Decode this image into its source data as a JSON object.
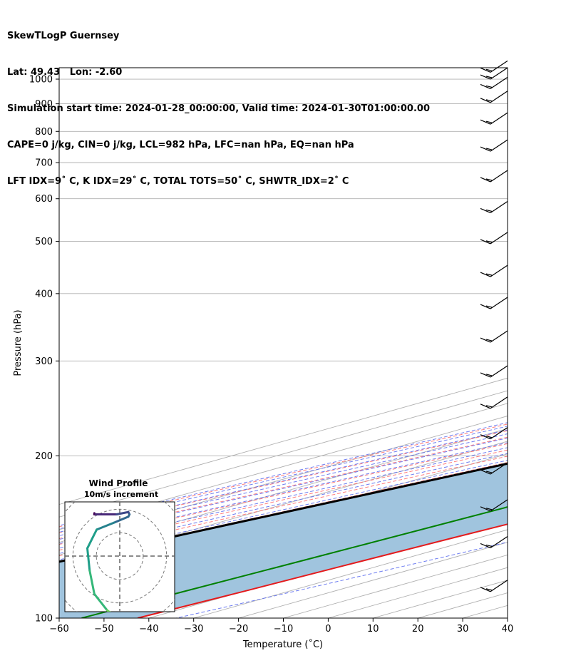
{
  "header": {
    "line1": "SkewTLogP Guernsey",
    "line2": "Lat: 49.43   Lon: -2.60",
    "line3": "Simulation start time: 2024-01-28_00:00:00, Valid time: 2024-01-30T01:00:00.00",
    "line4": "CAPE=0 j/kg, CIN=0 j/kg, LCL=982 hPa, LFC=nan hPa, EQ=nan hPa",
    "line5": "LFT IDX=9˚ C, K IDX=29˚ C, TOTAL TOTS=50˚ C, SHWTR_IDX=2˚ C"
  },
  "colors": {
    "temperature": "#e41a1c",
    "dewpoint": "#008000",
    "parcel": "#000000",
    "fill": "#a0c4de",
    "dry_adiabat": "#ff6666",
    "moist_adiabat": "#5566ee",
    "mixing_ratio": "#9955cc",
    "isotherm": "#b0b0b0"
  },
  "chart_data": [
    {
      "type": "line",
      "subtype": "skew-T log-P",
      "xlabel": "Temperature (˚C)",
      "ylabel": "Pressure (hPa)",
      "xlim": [
        -60,
        40
      ],
      "ylim": [
        1050,
        100
      ],
      "x_ticks": [
        "−60",
        "−50",
        "−40",
        "−30",
        "−20",
        "−10",
        "0",
        "10",
        "20",
        "30",
        "40"
      ],
      "x_tick_values": [
        -60,
        -50,
        -40,
        -30,
        -20,
        -10,
        0,
        10,
        20,
        30,
        40
      ],
      "y_ticks": [
        "100",
        "200",
        "300",
        "400",
        "500",
        "600",
        "700",
        "800",
        "900",
        "1000"
      ],
      "y_tick_values": [
        100,
        200,
        300,
        400,
        500,
        600,
        700,
        800,
        900,
        1000
      ],
      "grid": true,
      "series": [
        {
          "name": "Temperature",
          "pressure": [
            1010,
            1000,
            980,
            950,
            925,
            900,
            850,
            800,
            750,
            700,
            650,
            600,
            550,
            500,
            450,
            400,
            370,
            340,
            320,
            300,
            280,
            260,
            245,
            235,
            220,
            200,
            185,
            170,
            155,
            140,
            125,
            112,
            100
          ],
          "values": [
            10.5,
            11.5,
            13.5,
            13.0,
            12.5,
            12.0,
            10.5,
            8.0,
            5.8,
            3.8,
            2.5,
            1.0,
            -1.0,
            -3.5,
            -6.8,
            -11.0,
            -14.5,
            -17.5,
            -20.0,
            -22.5,
            -25.0,
            -28.0,
            -30.5,
            -30.0,
            -32.0,
            -31.5,
            -33.5,
            -32.5,
            -33.5,
            -35.8,
            -38.0,
            -40.0,
            -42.5
          ]
        },
        {
          "name": "Dewpoint",
          "pressure": [
            1010,
            1000,
            980,
            950,
            925,
            900,
            850,
            800,
            750,
            700,
            650,
            600,
            550,
            500,
            450,
            400,
            370,
            340,
            320,
            300,
            280,
            260,
            245,
            225,
            200,
            190,
            175,
            160,
            130,
            100
          ],
          "values": [
            9.5,
            10.5,
            11.5,
            11.8,
            11.0,
            10.0,
            7.5,
            4.0,
            1.5,
            0.5,
            -1.0,
            -3.0,
            -5.5,
            -9.0,
            -14.0,
            -22.0,
            -28.0,
            -27.0,
            -32.0,
            -33.5,
            -36.0,
            -38.0,
            -38.0,
            -38.0,
            -42.0,
            -44.0,
            -48.0,
            -48.0,
            -51.0,
            -55.0
          ]
        },
        {
          "name": "Parcel",
          "pressure": [
            1010,
            1000,
            982,
            950,
            900,
            850,
            800,
            750,
            700,
            650,
            600,
            550,
            500,
            450,
            400,
            350,
            300,
            250,
            200,
            150,
            125,
            100
          ],
          "values": [
            10.2,
            9.5,
            8.8,
            7.0,
            4.5,
            1.8,
            -1.5,
            -4.8,
            -8.5,
            -12.5,
            -17.0,
            -22.0,
            -27.5,
            -33.5,
            -40.8,
            -48.5,
            -57.5,
            -68.0,
            -80.5,
            -96.0,
            -105.5,
            -116.5
          ]
        }
      ],
      "wind_barbs_pressure": [
        112,
        135,
        158,
        185,
        215,
        245,
        280,
        325,
        375,
        430,
        495,
        565,
        645,
        735,
        825,
        905,
        960,
        1000,
        1030
      ]
    },
    {
      "type": "line",
      "subtype": "hodograph",
      "title": "Wind Profile",
      "subtitle": "10m/s increment",
      "rings_ms": [
        10,
        20,
        30
      ],
      "xlim": [
        -30,
        30
      ],
      "ylim": [
        -30,
        30
      ],
      "u": [
        15.5,
        14.5,
        13.0,
        15.0,
        18.0,
        21.0,
        20.5,
        19.0,
        16.0,
        11.5,
        9.5,
        8.5,
        7.5,
        10.0,
        13.0,
        13.5,
        15.0,
        18.0,
        19.0
      ],
      "v": [
        9.0,
        10.5,
        13.5,
        16.5,
        19.5,
        23.5,
        25.5,
        27.5,
        29.0,
        29.0,
        26.0,
        22.5,
        17.5,
        15.5,
        15.5,
        14.0,
        15.5,
        16.0,
        13.5
      ]
    }
  ]
}
